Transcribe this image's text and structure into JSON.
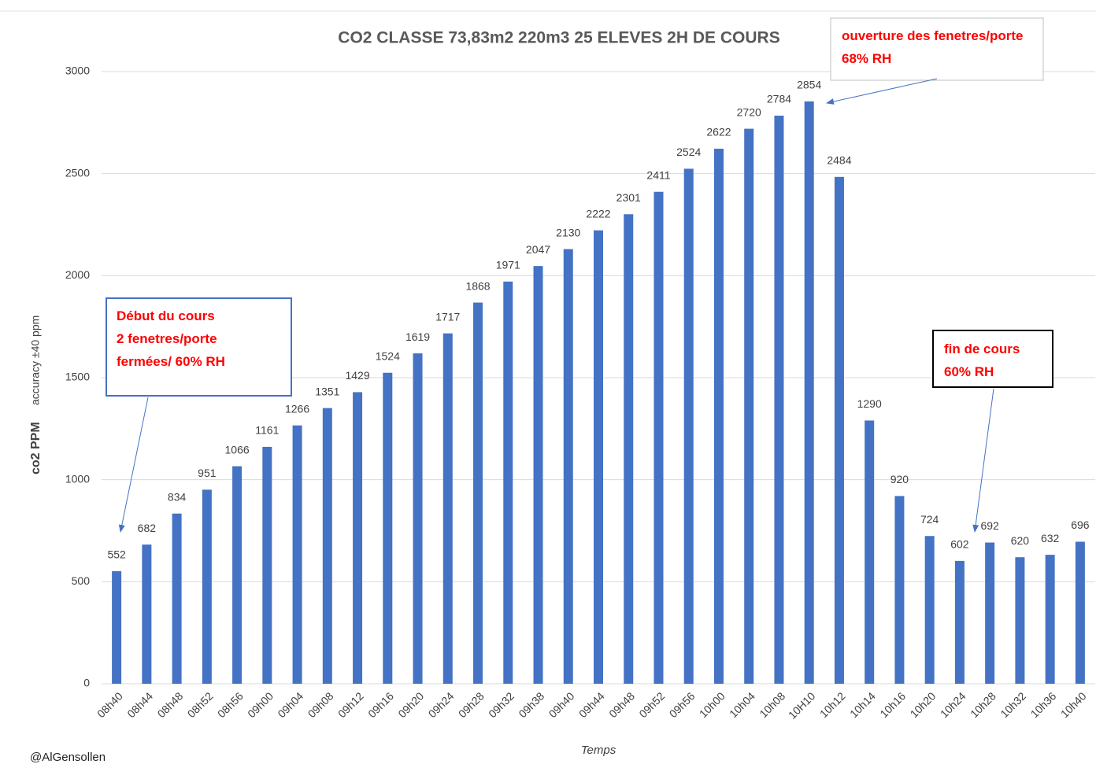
{
  "chart_data": {
    "type": "bar",
    "title": "CO2 CLASSE 73,83m2 220m3 25 ELEVES 2H DE COURS",
    "x_label": "Temps",
    "y_label": "co2 PPM",
    "y_label_note": "accuracy ±40 ppm",
    "credit": "@AlGensollen",
    "categories": [
      "08h40",
      "08h44",
      "08h48",
      "08h52",
      "08h56",
      "09h00",
      "09h04",
      "09h08",
      "09h12",
      "09h16",
      "09h20",
      "09h24",
      "09h28",
      "09h32",
      "09h38",
      "09h40",
      "09h44",
      "09h48",
      "09h52",
      "09h56",
      "10h00",
      "10h04",
      "10h08",
      "10H10",
      "10h12",
      "10h14",
      "10h16",
      "10h20",
      "10h24",
      "10h28",
      "10h32",
      "10h36",
      "10h40"
    ],
    "values": [
      552,
      682,
      834,
      951,
      1066,
      1161,
      1266,
      1351,
      1429,
      1524,
      1619,
      1717,
      1868,
      1971,
      2047,
      2130,
      2222,
      2301,
      2411,
      2524,
      2622,
      2720,
      2784,
      2854,
      2484,
      1290,
      920,
      724,
      602,
      692,
      620,
      632,
      696
    ],
    "color": "#4472c4",
    "ylim": [
      0,
      3000
    ],
    "yticks": [
      0,
      500,
      1000,
      1500,
      2000,
      2500,
      3000
    ],
    "grid": true,
    "annotations": [
      {
        "lines": [
          "Début du cours",
          "2 fenetres/porte",
          "fermées/ 60% RH"
        ]
      },
      {
        "lines": [
          "ouverture des fenetres/porte",
          "68% RH"
        ]
      },
      {
        "lines": [
          "fin de cours",
          "60% RH"
        ]
      }
    ]
  }
}
